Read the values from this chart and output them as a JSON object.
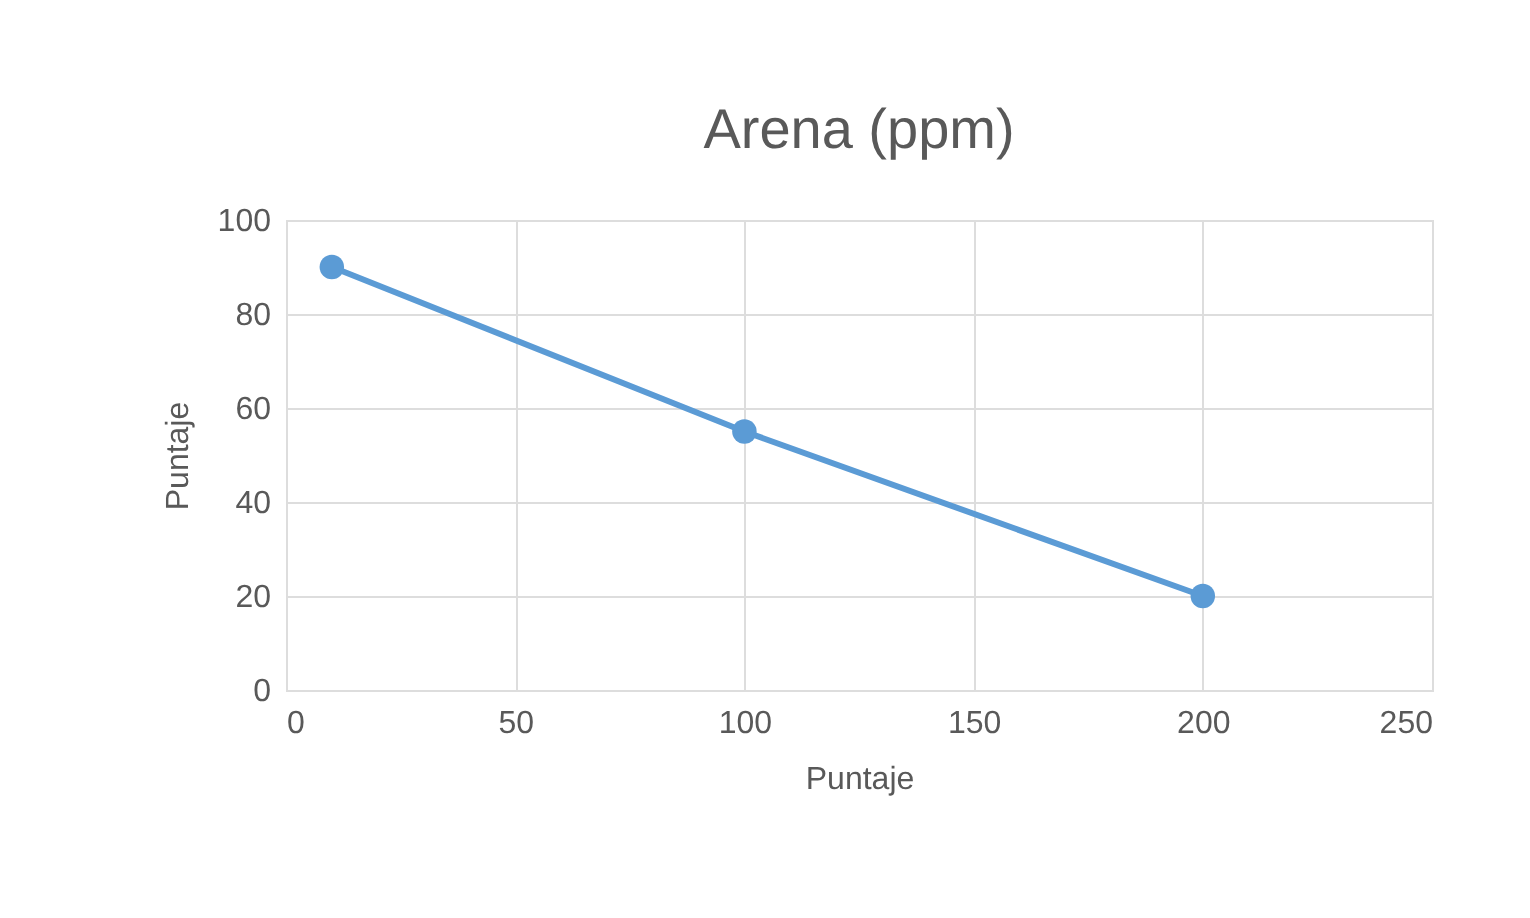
{
  "chart_data": {
    "type": "line",
    "title": "Arena (ppm)",
    "xlabel": "Puntaje",
    "ylabel": "Puntaje",
    "x": [
      10,
      100,
      200
    ],
    "series": [
      {
        "color": "#5b9bd5",
        "values": [
          90,
          55,
          20
        ]
      }
    ],
    "xlim": [
      0,
      250
    ],
    "xticks": [
      0,
      50,
      100,
      150,
      200,
      250
    ],
    "ylim": [
      0,
      100
    ],
    "yticks": [
      0,
      20,
      40,
      60,
      80,
      100
    ],
    "grid": true,
    "marker": "circle",
    "line_style": "solid"
  }
}
